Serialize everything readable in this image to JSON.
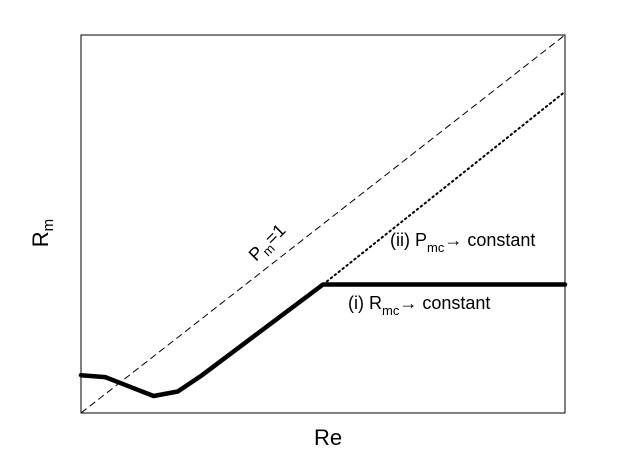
{
  "chart_data": {
    "type": "line",
    "title": "",
    "xlabel": "Re",
    "ylabel": {
      "main": "R",
      "sub": "m"
    },
    "xlim": [
      0,
      1
    ],
    "ylim": [
      0,
      1
    ],
    "grid": false,
    "legend": "none",
    "series": [
      {
        "style": "dashed",
        "x": [
          0,
          1
        ],
        "y": [
          0,
          1
        ]
      },
      {
        "style": "dotted",
        "x": [
          0.5,
          1
        ],
        "y": [
          0.34,
          0.85
        ]
      },
      {
        "style": "solid-thick",
        "x": [
          0,
          0.05,
          0.15,
          0.2,
          0.25,
          0.5,
          1
        ],
        "y": [
          0.1,
          0.095,
          0.045,
          0.057,
          0.1,
          0.34,
          0.34
        ]
      }
    ],
    "annotations": [
      {
        "id": "pm1",
        "parts": [
          {
            "text": "P"
          },
          {
            "text": "m",
            "sub": true
          },
          {
            "text": "=1"
          }
        ],
        "rotate": -45
      },
      {
        "id": "pmc",
        "parts": [
          {
            "text": "(ii) P"
          },
          {
            "text": "mc",
            "sub": true
          },
          {
            "text": "→ constant"
          }
        ]
      },
      {
        "id": "rmc",
        "parts": [
          {
            "text": "(i) R"
          },
          {
            "text": "mc",
            "sub": true
          },
          {
            "text": "→ constant"
          }
        ]
      }
    ]
  }
}
